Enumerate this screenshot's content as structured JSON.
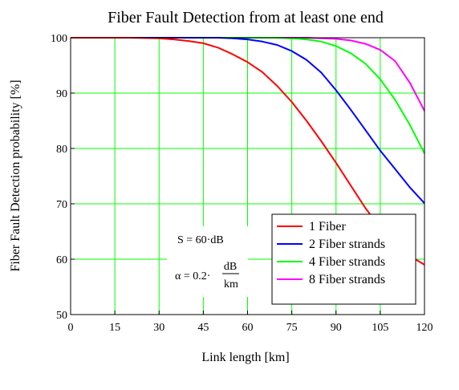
{
  "chart_data": {
    "type": "line",
    "title": "Fiber Fault Detection from at least one end",
    "xlabel": "Link length [km]",
    "ylabel": "Fiber Fault Detection probability [%]",
    "xlim": [
      0,
      120
    ],
    "ylim": [
      50,
      100
    ],
    "xticks": [
      0,
      15,
      30,
      45,
      60,
      75,
      90,
      105,
      120
    ],
    "yticks": [
      50,
      60,
      70,
      80,
      90,
      100
    ],
    "grid": true,
    "grid_color": "#00ff00",
    "legend_position": "bottom-right",
    "series": [
      {
        "name": "1 Fiber",
        "color": "#ff0000",
        "x": [
          0,
          10,
          20,
          30,
          35,
          40,
          45,
          50,
          55,
          60,
          65,
          70,
          75,
          80,
          85,
          90,
          95,
          100,
          105,
          110,
          115,
          120
        ],
        "y": [
          100,
          100,
          100,
          99.9,
          99.7,
          99.4,
          99.0,
          98.2,
          97.0,
          95.6,
          93.8,
          91.3,
          88.4,
          85.0,
          81.3,
          77.4,
          73.3,
          69.2,
          65.7,
          62.8,
          60.6,
          59.0
        ]
      },
      {
        "name": "2 Fiber strands",
        "color": "#0000ff",
        "x": [
          0,
          20,
          40,
          50,
          55,
          60,
          65,
          70,
          75,
          80,
          85,
          90,
          95,
          100,
          105,
          110,
          115,
          120
        ],
        "y": [
          100,
          100,
          100,
          100,
          99.9,
          99.7,
          99.3,
          98.7,
          97.6,
          96.0,
          93.7,
          90.5,
          87.0,
          83.3,
          79.6,
          76.3,
          73.0,
          70.1
        ]
      },
      {
        "name": "4 Fiber strands",
        "color": "#00ff00",
        "x": [
          0,
          20,
          40,
          60,
          70,
          75,
          80,
          85,
          90,
          95,
          100,
          105,
          110,
          115,
          120
        ],
        "y": [
          100,
          100,
          100,
          100,
          100,
          99.9,
          99.7,
          99.3,
          98.5,
          97.2,
          95.3,
          92.5,
          88.8,
          84.3,
          79.1
        ]
      },
      {
        "name": "8 Fiber strands",
        "color": "#ff00ff",
        "x": [
          0,
          20,
          40,
          60,
          80,
          85,
          90,
          95,
          100,
          105,
          110,
          115,
          120
        ],
        "y": [
          100,
          100,
          100,
          100,
          100,
          99.9,
          99.8,
          99.5,
          98.9,
          97.8,
          95.8,
          91.9,
          86.8
        ]
      }
    ],
    "annotations": {
      "line1": "S = 60·dB",
      "alpha_lhs": "α = 0.2·",
      "alpha_num": "dB",
      "alpha_den": "km"
    }
  }
}
